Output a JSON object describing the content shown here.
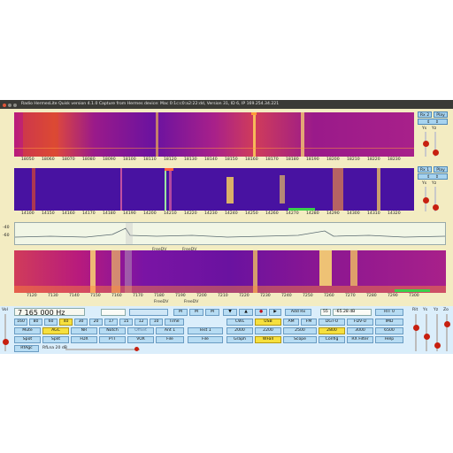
{
  "window": {
    "title": "Radio HermesLite   Quisk version 4.1.0   Capture from Hermes device: Mac 0:1c:c0:a2:22:dd, Version 31, ID 6, IP 169.254.34.221",
    "colors": {
      "title_bg": "#3a3a36",
      "app_bg": "#f3ecc2",
      "waterfall_base": "#3a1190",
      "button": "#b7dcf3",
      "button_on": "#f6e03e"
    }
  },
  "waterfall_top": {
    "freq_ticks": [
      "18050",
      "18060",
      "18070",
      "18080",
      "18090",
      "18100",
      "18110",
      "18120",
      "18130",
      "18140",
      "18150",
      "18160",
      "18170",
      "18180",
      "18190",
      "18200",
      "18210",
      "18220",
      "18230"
    ]
  },
  "waterfall_mid": {
    "freq_ticks": [
      "14100",
      "14150",
      "14160",
      "14170",
      "14180",
      "14190",
      "14200",
      "14210",
      "14220",
      "14230",
      "14240",
      "14250",
      "14260",
      "14270",
      "14280",
      "14290",
      "14300",
      "14310",
      "14320"
    ]
  },
  "scope": {
    "db_labels": [
      "-40",
      "-60"
    ],
    "freedv_labels": [
      "FreeDV",
      "FreeDV"
    ]
  },
  "waterfall_bottom": {
    "freq_ticks": [
      "7120",
      "7130",
      "7140",
      "7150",
      "7160",
      "7170",
      "7180",
      "7190",
      "7200",
      "7210",
      "7220",
      "7230",
      "7240",
      "7250",
      "7260",
      "7270",
      "7280",
      "7290",
      "7300"
    ],
    "freedv_labels": [
      "FreeDV",
      "FreeDV"
    ]
  },
  "right_panel_top": {
    "rx_label": "Rx 2",
    "play_label": "Play",
    "slider_labels": [
      "Ys",
      "Yz"
    ]
  },
  "right_panel_mid": {
    "rx_label": "Rx 1",
    "play_label": "Play",
    "slider_labels": [
      "Ys",
      "Yz"
    ]
  },
  "controls": {
    "frequency": "7 165 000 Hz",
    "left_labels": {
      "vol": "Vol",
      "rfgain": "RF"
    },
    "right_labels": [
      "Rit",
      "Ys",
      "Yz",
      "Zo"
    ],
    "bands": [
      "160",
      "80",
      "60",
      "40",
      "30",
      "20",
      "17",
      "15",
      "12",
      "10",
      "Time"
    ],
    "row2": [
      "Mute",
      "AGC",
      "NR",
      "Notch",
      "Offset",
      "Ant 1"
    ],
    "row3": [
      "Spot",
      "Split",
      "FDX",
      "PTT",
      "VOX",
      "File",
      "File"
    ],
    "rfagc": "RfAgc",
    "rflna": "RfLna 20 dB",
    "mem_buttons": [
      "M",
      "M",
      "M",
      "Store",
      "Add Rx",
      "Test 1"
    ],
    "smeter": {
      "value": "55",
      "reading": "-65.28  dB"
    },
    "rit": "RIT 0",
    "modes_row1": [
      "CWL",
      "USB",
      "AM",
      "FM",
      "DGT-U",
      "FDV-U",
      "IMD"
    ],
    "modes_row2": [
      "2000",
      "2200",
      "2500",
      "2800",
      "3000",
      "6500"
    ],
    "modes_row3": [
      "Graph",
      "WFall",
      "Scope",
      "Config",
      "RX Filter",
      "Help"
    ]
  }
}
